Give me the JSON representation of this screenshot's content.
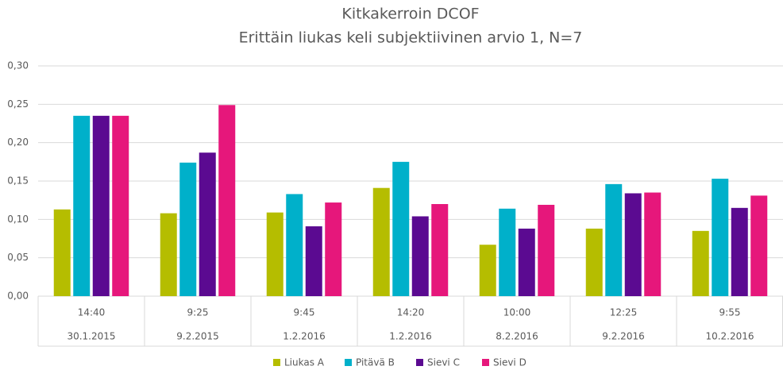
{
  "chart_data": {
    "type": "bar",
    "title": "Kitkakerroin DCOF",
    "subtitle": "Erittäin liukas keli subjektiivinen arvio 1, N=7",
    "categories": [
      "14:40",
      "9:25",
      "9:45",
      "14:20",
      "10:00",
      "12:25",
      "9:55"
    ],
    "dates": [
      "30.1.2015",
      "9.2.2015",
      "1.2.2016",
      "1.2.2016",
      "8.2.2016",
      "9.2.2016",
      "10.2.2016"
    ],
    "series": [
      {
        "name": "Liukas A",
        "color": "#b5bd00",
        "values": [
          0.113,
          0.108,
          0.109,
          0.141,
          0.067,
          0.088,
          0.085
        ]
      },
      {
        "name": "Pitävä B",
        "color": "#00b0ca",
        "values": [
          0.235,
          0.174,
          0.133,
          0.175,
          0.114,
          0.146,
          0.153
        ]
      },
      {
        "name": "Sievi C",
        "color": "#5b0a91",
        "values": [
          0.235,
          0.187,
          0.091,
          0.104,
          0.088,
          0.134,
          0.115
        ]
      },
      {
        "name": "Sievi D",
        "color": "#e6177b",
        "values": [
          0.235,
          0.249,
          0.122,
          0.12,
          0.119,
          0.135,
          0.131
        ]
      }
    ],
    "ylim": [
      0,
      0.3
    ],
    "yticks": [
      {
        "value": 0,
        "label": "0,00"
      },
      {
        "value": 0.05,
        "label": "0,05"
      },
      {
        "value": 0.1,
        "label": "0,10"
      },
      {
        "value": 0.15,
        "label": "0,15"
      },
      {
        "value": 0.2,
        "label": "0,20"
      },
      {
        "value": 0.25,
        "label": "0,25"
      },
      {
        "value": 0.3,
        "label": "0,30"
      }
    ],
    "grid": true,
    "legend": "bottom"
  }
}
